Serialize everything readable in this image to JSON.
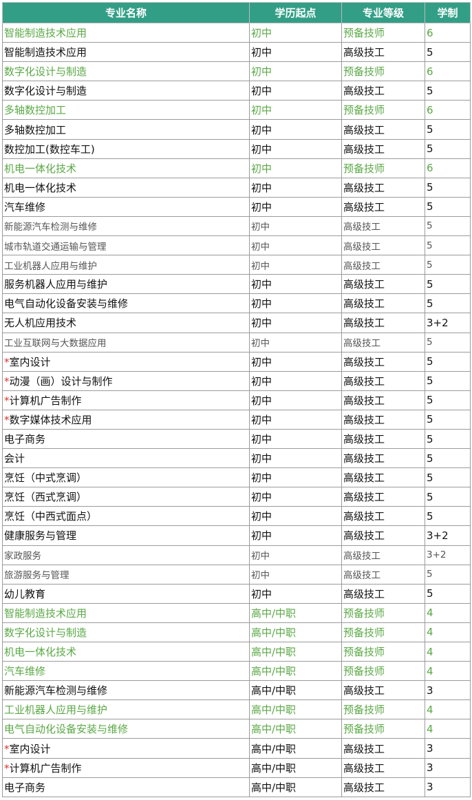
{
  "table": {
    "header": [
      "专业名称",
      "学历起点",
      "专业等级",
      "学制"
    ],
    "rows": [
      {
        "cells": [
          "智能制造技术应用",
          "初中",
          "预备技师",
          "6"
        ],
        "style": "green"
      },
      {
        "cells": [
          "智能制造技术应用",
          "初中",
          "高级技工",
          "5"
        ],
        "style": "normal"
      },
      {
        "cells": [
          "数字化设计与制造",
          "初中",
          "预备技师",
          "6"
        ],
        "style": "green"
      },
      {
        "cells": [
          "数字化设计与制造",
          "初中",
          "高级技工",
          "5"
        ],
        "style": "normal"
      },
      {
        "cells": [
          "多轴数控加工",
          "初中",
          "预备技师",
          "6"
        ],
        "style": "green"
      },
      {
        "cells": [
          "多轴数控加工",
          "初中",
          "高级技工",
          "5"
        ],
        "style": "normal"
      },
      {
        "cells": [
          "数控加工(数控车工)",
          "初中",
          "高级技工",
          "5"
        ],
        "style": "normal"
      },
      {
        "cells": [
          "机电一体化技术",
          "初中",
          "预备技师",
          "6"
        ],
        "style": "green"
      },
      {
        "cells": [
          "机电一体化技术",
          "初中",
          "高级技工",
          "5"
        ],
        "style": "normal"
      },
      {
        "cells": [
          "汽车维修",
          "初中",
          "高级技工",
          "5"
        ],
        "style": "normal"
      },
      {
        "cells": [
          "新能源汽车检测与维修",
          "初中",
          "高级技工",
          "5"
        ],
        "style": "small"
      },
      {
        "cells": [
          "城市轨道交通运输与管理",
          "初中",
          "高级技工",
          "5"
        ],
        "style": "small"
      },
      {
        "cells": [
          "工业机器人应用与维护",
          "初中",
          "高级技工",
          "5"
        ],
        "style": "small"
      },
      {
        "cells": [
          "服务机器人应用与维护",
          "初中",
          "高级技工",
          "5"
        ],
        "style": "normal"
      },
      {
        "cells": [
          "电气自动化设备安装与维修",
          "初中",
          "高级技工",
          "5"
        ],
        "style": "normal"
      },
      {
        "cells": [
          "无人机应用技术",
          "初中",
          "高级技工",
          "3+2"
        ],
        "style": "normal"
      },
      {
        "cells": [
          "工业互联网与大数据应用",
          "初中",
          "高级技工",
          "5"
        ],
        "style": "small"
      },
      {
        "mark": "*",
        "cells": [
          "室内设计",
          "初中",
          "高级技工",
          "5"
        ],
        "style": "normal"
      },
      {
        "mark": "*",
        "cells": [
          "动漫（画）设计与制作",
          "初中",
          "高级技工",
          "5"
        ],
        "style": "normal"
      },
      {
        "mark": "*",
        "cells": [
          "计算机广告制作",
          "初中",
          "高级技工",
          "5"
        ],
        "style": "normal"
      },
      {
        "mark": "*",
        "cells": [
          "数字媒体技术应用",
          "初中",
          "高级技工",
          "5"
        ],
        "style": "normal"
      },
      {
        "cells": [
          "电子商务",
          "初中",
          "高级技工",
          "5"
        ],
        "style": "normal"
      },
      {
        "cells": [
          "会计",
          "初中",
          "高级技工",
          "5"
        ],
        "style": "normal"
      },
      {
        "cells": [
          "烹饪（中式烹调）",
          "初中",
          "高级技工",
          "5"
        ],
        "style": "normal"
      },
      {
        "cells": [
          "烹饪（西式烹调）",
          "初中",
          "高级技工",
          "5"
        ],
        "style": "normal"
      },
      {
        "cells": [
          "烹饪（中西式面点）",
          "初中",
          "高级技工",
          "5"
        ],
        "style": "normal"
      },
      {
        "cells": [
          "健康服务与管理",
          "初中",
          "高级技工",
          "3+2"
        ],
        "style": "normal"
      },
      {
        "cells": [
          "家政服务",
          "初中",
          "高级技工",
          "3+2"
        ],
        "style": "small"
      },
      {
        "cells": [
          "旅游服务与管理",
          "初中",
          "高级技工",
          "5"
        ],
        "style": "small"
      },
      {
        "cells": [
          "幼儿教育",
          "初中",
          "高级技工",
          "5"
        ],
        "style": "normal"
      },
      {
        "cells": [
          "智能制造技术应用",
          "高中/中职",
          "预备技师",
          "4"
        ],
        "style": "green"
      },
      {
        "cells": [
          "数字化设计与制造",
          "高中/中职",
          "预备技师",
          "4"
        ],
        "style": "green"
      },
      {
        "cells": [
          "机电一体化技术",
          "高中/中职",
          "预备技师",
          "4"
        ],
        "style": "green"
      },
      {
        "cells": [
          "汽车维修",
          "高中/中职",
          "预备技师",
          "4"
        ],
        "style": "green"
      },
      {
        "cells": [
          "新能源汽车检测与维修",
          "高中/中职",
          "高级技工",
          "3"
        ],
        "style": "normal"
      },
      {
        "cells": [
          "工业机器人应用与维护",
          "高中/中职",
          "预备技师",
          "4"
        ],
        "style": "green"
      },
      {
        "cells": [
          "电气自动化设备安装与维修",
          "高中/中职",
          "预备技师",
          "4"
        ],
        "style": "green"
      },
      {
        "mark": "*",
        "cells": [
          "室内设计",
          "高中/中职",
          "高级技工",
          "3"
        ],
        "style": "normal"
      },
      {
        "mark": "*",
        "cells": [
          "计算机广告制作",
          "高中/中职",
          "高级技工",
          "3"
        ],
        "style": "normal"
      },
      {
        "cells": [
          "电子商务",
          "高中/中职",
          "高级技工",
          "3"
        ],
        "style": "normal"
      }
    ]
  }
}
